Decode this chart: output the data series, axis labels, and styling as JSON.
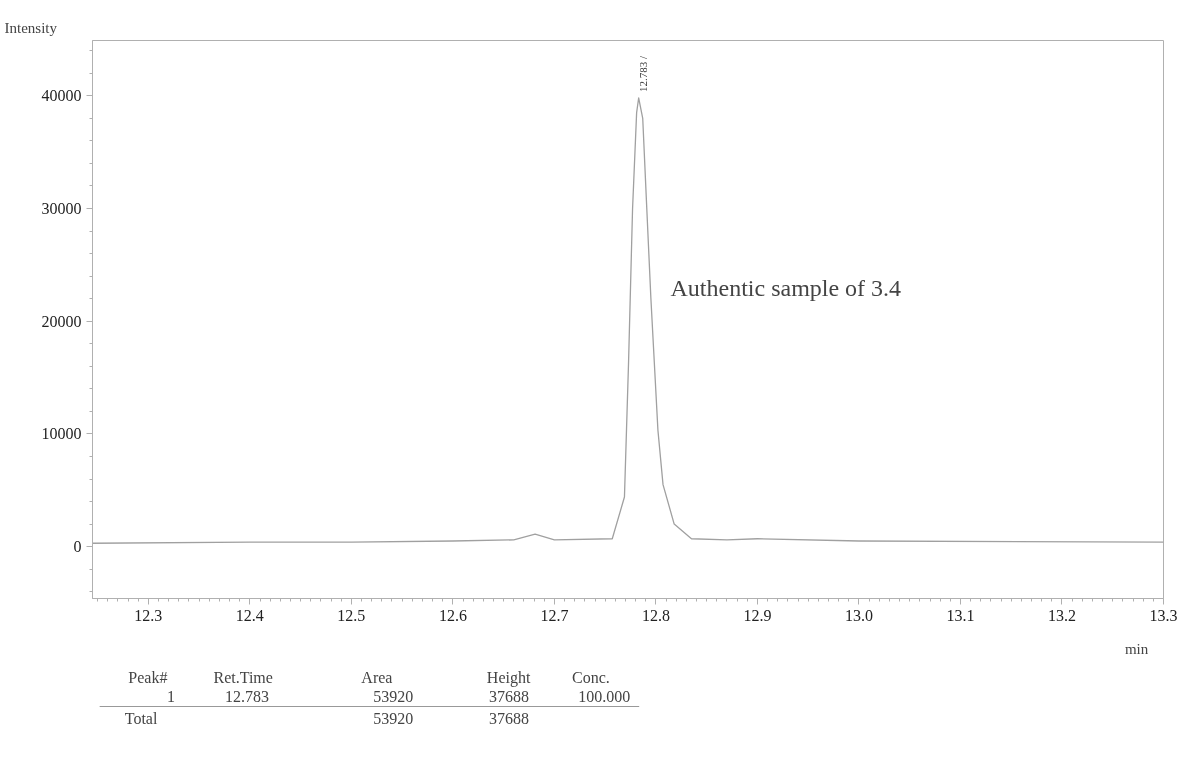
{
  "chart_data": {
    "type": "line",
    "xlabel": "min",
    "ylabel": "Intensity",
    "x": [
      12.245,
      12.4,
      12.5,
      12.6,
      12.66,
      12.681,
      12.7,
      12.757,
      12.769,
      12.773,
      12.777,
      12.781,
      12.783,
      12.787,
      12.791,
      12.795,
      12.802,
      12.807,
      12.818,
      12.835,
      12.87,
      12.9,
      13.0,
      13.3
    ],
    "series": [
      {
        "color": "#a0a0a0",
        "values": [
          300,
          400,
          400,
          500,
          600,
          1100,
          600,
          700,
          4400,
          16200,
          30000,
          38500,
          39800,
          38000,
          30000,
          22100,
          10300,
          5500,
          2000,
          700,
          600,
          700,
          500,
          400
        ]
      }
    ],
    "xlim": [
      12.245,
      13.3
    ],
    "ylim": [
      -4600,
      44900
    ],
    "xticks": [
      12.3,
      12.4,
      12.5,
      12.6,
      12.7,
      12.8,
      12.9,
      {
        "value": 13.0,
        "label": "13.0"
      },
      13.1,
      13.2,
      13.3
    ],
    "yticks": [
      0,
      10000,
      20000,
      30000,
      40000
    ],
    "grid": false,
    "marker": "none",
    "line_style": "solid",
    "annotations": [
      {
        "text": "12.783 /",
        "x": 12.783,
        "y": 39800
      },
      "Authentic sample of 3.4",
      "Peak#",
      "Ret.Time",
      "Area",
      "Height",
      "Conc.",
      "1",
      "12.783",
      "53920",
      "37688",
      "100.000",
      "Total",
      "53920",
      "37688"
    ]
  }
}
